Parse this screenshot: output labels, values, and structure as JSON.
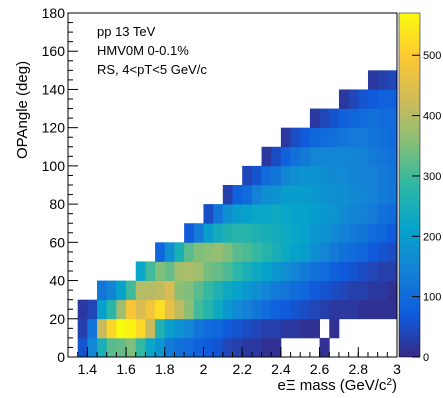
{
  "chart_data": {
    "type": "heatmap",
    "title": "",
    "xlabel": "eΞ mass (GeV/c²)",
    "ylabel": "OPAngle (deg)",
    "xlim": [
      1.3,
      3.0
    ],
    "ylim": [
      0,
      180
    ],
    "zlim": [
      0,
      570
    ],
    "x_ticks": [
      1.4,
      1.6,
      1.8,
      2,
      2.2,
      2.4,
      2.6,
      2.8,
      3
    ],
    "y_ticks": [
      0,
      20,
      40,
      60,
      80,
      100,
      120,
      140,
      160,
      180
    ],
    "z_ticks": [
      0,
      100,
      200,
      300,
      400,
      500
    ],
    "x_bin_edges": [
      1.35,
      1.4,
      1.45,
      1.5,
      1.55,
      1.6,
      1.65,
      1.7,
      1.75,
      1.8,
      1.85,
      1.9,
      1.95,
      2.0,
      2.05,
      2.1,
      2.15,
      2.2,
      2.25,
      2.3,
      2.35,
      2.4,
      2.45,
      2.5,
      2.55,
      2.6,
      2.65,
      2.7,
      2.75,
      2.8,
      2.85,
      2.9,
      2.95,
      3.0
    ],
    "y_bin_width": 10,
    "columns": [
      [
        60,
        30,
        20
      ],
      [
        150,
        120,
        40
      ],
      [
        250,
        420,
        210,
        120
      ],
      [
        320,
        520,
        280,
        150
      ],
      [
        330,
        570,
        380,
        210
      ],
      [
        350,
        560,
        490,
        300
      ],
      [
        290,
        520,
        440,
        400,
        220
      ],
      [
        220,
        420,
        480,
        400,
        300
      ],
      [
        180,
        260,
        530,
        410,
        350,
        90
      ],
      [
        130,
        200,
        460,
        440,
        330,
        170
      ],
      [
        110,
        180,
        410,
        360,
        380,
        250
      ],
      [
        100,
        150,
        360,
        350,
        390,
        320,
        70
      ],
      [
        80,
        120,
        300,
        320,
        380,
        350,
        130
      ],
      [
        70,
        100,
        270,
        290,
        340,
        360,
        200,
        50
      ],
      [
        60,
        90,
        230,
        260,
        330,
        370,
        240,
        120
      ],
      [
        40,
        70,
        190,
        230,
        310,
        350,
        260,
        170,
        30
      ],
      [
        30,
        60,
        160,
        210,
        280,
        320,
        270,
        200,
        80
      ],
      [
        20,
        50,
        140,
        190,
        250,
        310,
        270,
        210,
        100,
        40
      ],
      [
        20,
        40,
        120,
        170,
        230,
        290,
        260,
        220,
        140,
        60
      ],
      [
        10,
        30,
        100,
        150,
        210,
        270,
        250,
        220,
        170,
        100,
        20
      ],
      [
        10,
        30,
        80,
        130,
        190,
        250,
        240,
        230,
        180,
        120,
        50
      ],
      [
        0,
        20,
        70,
        120,
        170,
        230,
        230,
        220,
        200,
        150,
        80,
        20
      ],
      [
        0,
        20,
        60,
        100,
        150,
        210,
        220,
        210,
        200,
        170,
        110,
        50
      ],
      [
        0,
        10,
        50,
        90,
        130,
        200,
        210,
        210,
        200,
        180,
        130,
        70
      ],
      [
        0,
        10,
        40,
        70,
        110,
        170,
        190,
        200,
        190,
        180,
        150,
        90,
        20
      ],
      [
        10,
        0,
        30,
        60,
        100,
        150,
        180,
        190,
        180,
        170,
        150,
        100,
        40
      ],
      [
        0,
        10,
        20,
        50,
        80,
        130,
        160,
        180,
        170,
        160,
        150,
        110,
        60
      ],
      [
        0,
        0,
        20,
        40,
        70,
        110,
        140,
        160,
        170,
        160,
        150,
        120,
        80,
        20
      ],
      [
        0,
        0,
        20,
        30,
        60,
        100,
        130,
        150,
        160,
        150,
        150,
        130,
        90,
        40
      ],
      [
        0,
        0,
        10,
        30,
        50,
        90,
        120,
        140,
        150,
        140,
        140,
        130,
        100,
        60
      ],
      [
        0,
        0,
        10,
        20,
        40,
        70,
        100,
        130,
        140,
        140,
        130,
        120,
        110,
        70,
        20
      ],
      [
        0,
        0,
        10,
        20,
        30,
        60,
        90,
        110,
        130,
        130,
        120,
        110,
        100,
        80,
        30
      ],
      [
        0,
        0,
        10,
        10,
        30,
        50,
        70,
        100,
        120,
        120,
        110,
        100,
        100,
        80,
        40
      ]
    ],
    "annotations": [
      "pp 13 TeV",
      "HMV0M 0-0.1%",
      "RS, 4<pT<5 GeV/c"
    ],
    "colormap": "viridis-like (blue to yellow)",
    "grid": false
  },
  "colors": {
    "palette": [
      "#352a87",
      "#0f5cdd",
      "#1481d6",
      "#06a4ca",
      "#2eb7a4",
      "#87bf77",
      "#d1bb59",
      "#fec832",
      "#f9fb0e"
    ],
    "axis": "#000000",
    "background": "#ffffff"
  }
}
